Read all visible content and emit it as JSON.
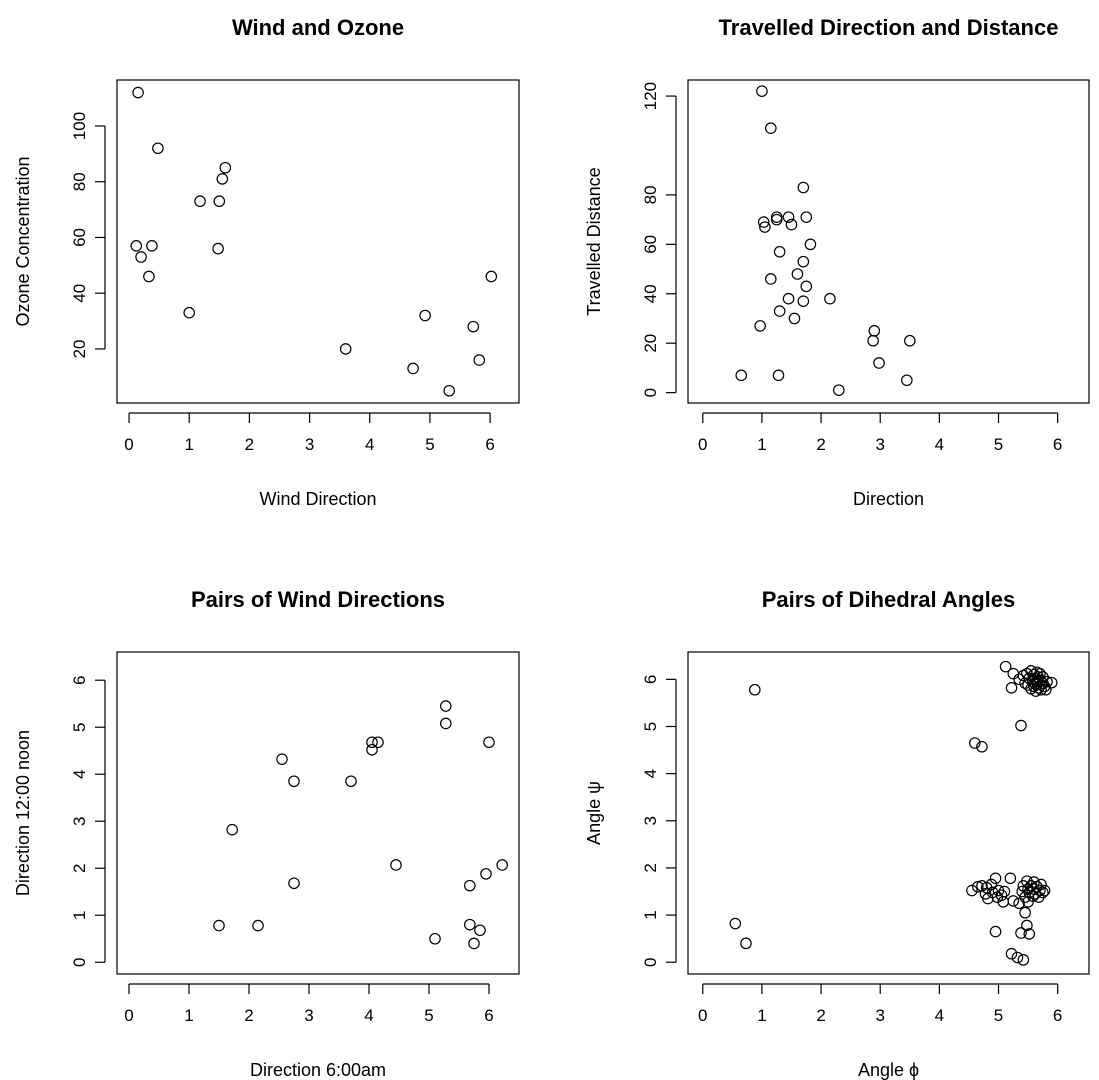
{
  "chart_data": [
    {
      "type": "scatter",
      "title": "Wind and Ozone",
      "xlabel": "Wind Direction",
      "ylabel": "Ozone Concentration",
      "xlim": [
        -0.2,
        6.48
      ],
      "ylim": [
        0.6,
        116.5
      ],
      "xticks": [
        0,
        1,
        2,
        3,
        4,
        5,
        6
      ],
      "yticks": [
        20,
        40,
        60,
        80,
        100
      ],
      "points": [
        {
          "x": 0.15,
          "y": 112
        },
        {
          "x": 0.48,
          "y": 92
        },
        {
          "x": 0.12,
          "y": 57
        },
        {
          "x": 0.2,
          "y": 53
        },
        {
          "x": 0.38,
          "y": 57
        },
        {
          "x": 0.33,
          "y": 46
        },
        {
          "x": 1.0,
          "y": 33
        },
        {
          "x": 1.18,
          "y": 73
        },
        {
          "x": 1.5,
          "y": 73
        },
        {
          "x": 1.55,
          "y": 81
        },
        {
          "x": 1.6,
          "y": 85
        },
        {
          "x": 1.48,
          "y": 56
        },
        {
          "x": 3.6,
          "y": 20
        },
        {
          "x": 4.72,
          "y": 13
        },
        {
          "x": 4.92,
          "y": 32
        },
        {
          "x": 5.32,
          "y": 5
        },
        {
          "x": 5.72,
          "y": 28
        },
        {
          "x": 5.82,
          "y": 16
        },
        {
          "x": 6.02,
          "y": 46
        }
      ]
    },
    {
      "type": "scatter",
      "title": "Travelled Direction and Distance",
      "xlabel": "Direction",
      "ylabel": "Travelled Distance",
      "xlim": [
        -0.25,
        6.53
      ],
      "ylim": [
        -4.2,
        126.5
      ],
      "xticks": [
        0,
        1,
        2,
        3,
        4,
        5,
        6
      ],
      "yticks": [
        0,
        20,
        40,
        60,
        80,
        120
      ],
      "points": [
        {
          "x": 1.0,
          "y": 122
        },
        {
          "x": 1.15,
          "y": 107
        },
        {
          "x": 1.7,
          "y": 83
        },
        {
          "x": 1.75,
          "y": 71
        },
        {
          "x": 1.45,
          "y": 71
        },
        {
          "x": 1.25,
          "y": 71
        },
        {
          "x": 1.25,
          "y": 70
        },
        {
          "x": 1.03,
          "y": 69
        },
        {
          "x": 1.05,
          "y": 67
        },
        {
          "x": 1.5,
          "y": 68
        },
        {
          "x": 1.82,
          "y": 60
        },
        {
          "x": 1.3,
          "y": 57
        },
        {
          "x": 1.7,
          "y": 53
        },
        {
          "x": 1.6,
          "y": 48
        },
        {
          "x": 1.15,
          "y": 46
        },
        {
          "x": 1.75,
          "y": 43
        },
        {
          "x": 1.45,
          "y": 38
        },
        {
          "x": 1.7,
          "y": 37
        },
        {
          "x": 2.15,
          "y": 38
        },
        {
          "x": 1.3,
          "y": 33
        },
        {
          "x": 1.55,
          "y": 30
        },
        {
          "x": 0.97,
          "y": 27
        },
        {
          "x": 0.65,
          "y": 7
        },
        {
          "x": 1.28,
          "y": 7
        },
        {
          "x": 2.3,
          "y": 1
        },
        {
          "x": 2.9,
          "y": 25
        },
        {
          "x": 2.88,
          "y": 21
        },
        {
          "x": 2.98,
          "y": 12
        },
        {
          "x": 3.5,
          "y": 21
        },
        {
          "x": 3.45,
          "y": 5
        }
      ]
    },
    {
      "type": "scatter",
      "title": "Pairs of Wind Directions",
      "xlabel": "Direction 6:00am",
      "ylabel": "Direction 12:00 noon",
      "xlim": [
        -0.2,
        6.5
      ],
      "ylim": [
        -0.25,
        6.6
      ],
      "xticks": [
        0,
        1,
        2,
        3,
        4,
        5,
        6
      ],
      "yticks": [
        0,
        1,
        2,
        3,
        4,
        5,
        6
      ],
      "points": [
        {
          "x": 1.5,
          "y": 0.78
        },
        {
          "x": 2.15,
          "y": 0.78
        },
        {
          "x": 1.72,
          "y": 2.82
        },
        {
          "x": 2.55,
          "y": 4.32
        },
        {
          "x": 2.75,
          "y": 3.85
        },
        {
          "x": 2.75,
          "y": 1.68
        },
        {
          "x": 3.7,
          "y": 3.85
        },
        {
          "x": 4.05,
          "y": 4.68
        },
        {
          "x": 4.15,
          "y": 4.68
        },
        {
          "x": 4.05,
          "y": 4.52
        },
        {
          "x": 4.45,
          "y": 2.07
        },
        {
          "x": 5.28,
          "y": 5.45
        },
        {
          "x": 5.28,
          "y": 5.08
        },
        {
          "x": 5.1,
          "y": 0.5
        },
        {
          "x": 5.68,
          "y": 1.63
        },
        {
          "x": 5.68,
          "y": 0.8
        },
        {
          "x": 5.75,
          "y": 0.4
        },
        {
          "x": 5.85,
          "y": 0.68
        },
        {
          "x": 5.95,
          "y": 1.88
        },
        {
          "x": 6.0,
          "y": 4.68
        },
        {
          "x": 6.22,
          "y": 2.07
        }
      ]
    },
    {
      "type": "scatter",
      "title": "Pairs of Dihedral Angles",
      "xlabel": "Angle ϕ",
      "ylabel": "Angle ψ",
      "xlim": [
        -0.25,
        6.53
      ],
      "ylim": [
        -0.25,
        6.58
      ],
      "xticks": [
        0,
        1,
        2,
        3,
        4,
        5,
        6
      ],
      "yticks": [
        0,
        1,
        2,
        3,
        4,
        5,
        6
      ],
      "points": [
        {
          "x": 0.55,
          "y": 0.82
        },
        {
          "x": 0.73,
          "y": 0.4
        },
        {
          "x": 0.88,
          "y": 5.78
        },
        {
          "x": 4.6,
          "y": 4.65
        },
        {
          "x": 4.72,
          "y": 4.57
        },
        {
          "x": 5.38,
          "y": 5.02
        },
        {
          "x": 5.12,
          "y": 6.27
        },
        {
          "x": 5.25,
          "y": 6.12
        },
        {
          "x": 5.22,
          "y": 5.82
        },
        {
          "x": 5.35,
          "y": 6.0
        },
        {
          "x": 5.42,
          "y": 6.08
        },
        {
          "x": 5.45,
          "y": 5.92
        },
        {
          "x": 5.48,
          "y": 6.12
        },
        {
          "x": 5.5,
          "y": 5.88
        },
        {
          "x": 5.52,
          "y": 6.02
        },
        {
          "x": 5.55,
          "y": 5.8
        },
        {
          "x": 5.55,
          "y": 6.18
        },
        {
          "x": 5.58,
          "y": 5.95
        },
        {
          "x": 5.6,
          "y": 6.1
        },
        {
          "x": 5.6,
          "y": 5.85
        },
        {
          "x": 5.62,
          "y": 6.02
        },
        {
          "x": 5.63,
          "y": 5.75
        },
        {
          "x": 5.65,
          "y": 6.15
        },
        {
          "x": 5.65,
          "y": 5.92
        },
        {
          "x": 5.67,
          "y": 6.05
        },
        {
          "x": 5.68,
          "y": 5.82
        },
        {
          "x": 5.7,
          "y": 5.98
        },
        {
          "x": 5.7,
          "y": 6.12
        },
        {
          "x": 5.72,
          "y": 5.88
        },
        {
          "x": 5.72,
          "y": 5.78
        },
        {
          "x": 5.75,
          "y": 6.05
        },
        {
          "x": 5.75,
          "y": 5.92
        },
        {
          "x": 5.78,
          "y": 5.85
        },
        {
          "x": 5.8,
          "y": 5.78
        },
        {
          "x": 5.82,
          "y": 5.95
        },
        {
          "x": 5.9,
          "y": 5.93
        },
        {
          "x": 5.58,
          "y": 6.0
        },
        {
          "x": 5.62,
          "y": 5.9
        },
        {
          "x": 5.66,
          "y": 5.98
        },
        {
          "x": 4.55,
          "y": 1.52
        },
        {
          "x": 4.65,
          "y": 1.6
        },
        {
          "x": 4.72,
          "y": 1.62
        },
        {
          "x": 4.78,
          "y": 1.45
        },
        {
          "x": 4.8,
          "y": 1.58
        },
        {
          "x": 4.82,
          "y": 1.35
        },
        {
          "x": 4.88,
          "y": 1.65
        },
        {
          "x": 4.9,
          "y": 1.48
        },
        {
          "x": 4.95,
          "y": 1.78
        },
        {
          "x": 4.98,
          "y": 1.38
        },
        {
          "x": 5.0,
          "y": 1.52
        },
        {
          "x": 5.05,
          "y": 1.42
        },
        {
          "x": 5.08,
          "y": 1.28
        },
        {
          "x": 5.1,
          "y": 1.5
        },
        {
          "x": 5.2,
          "y": 1.78
        },
        {
          "x": 5.25,
          "y": 1.3
        },
        {
          "x": 5.35,
          "y": 1.25
        },
        {
          "x": 5.4,
          "y": 1.5
        },
        {
          "x": 5.42,
          "y": 1.62
        },
        {
          "x": 5.45,
          "y": 1.38
        },
        {
          "x": 5.45,
          "y": 1.05
        },
        {
          "x": 5.48,
          "y": 1.72
        },
        {
          "x": 5.5,
          "y": 1.55
        },
        {
          "x": 5.5,
          "y": 1.28
        },
        {
          "x": 5.52,
          "y": 1.48
        },
        {
          "x": 5.55,
          "y": 1.62
        },
        {
          "x": 5.58,
          "y": 1.4
        },
        {
          "x": 5.6,
          "y": 1.55
        },
        {
          "x": 5.6,
          "y": 1.7
        },
        {
          "x": 5.62,
          "y": 1.45
        },
        {
          "x": 5.65,
          "y": 1.6
        },
        {
          "x": 5.68,
          "y": 1.38
        },
        {
          "x": 5.7,
          "y": 1.52
        },
        {
          "x": 5.72,
          "y": 1.65
        },
        {
          "x": 5.75,
          "y": 1.48
        },
        {
          "x": 5.78,
          "y": 1.52
        },
        {
          "x": 4.95,
          "y": 0.65
        },
        {
          "x": 5.38,
          "y": 0.62
        },
        {
          "x": 5.48,
          "y": 0.78
        },
        {
          "x": 5.52,
          "y": 0.6
        },
        {
          "x": 5.22,
          "y": 0.18
        },
        {
          "x": 5.32,
          "y": 0.1
        },
        {
          "x": 5.42,
          "y": 0.05
        }
      ]
    }
  ]
}
